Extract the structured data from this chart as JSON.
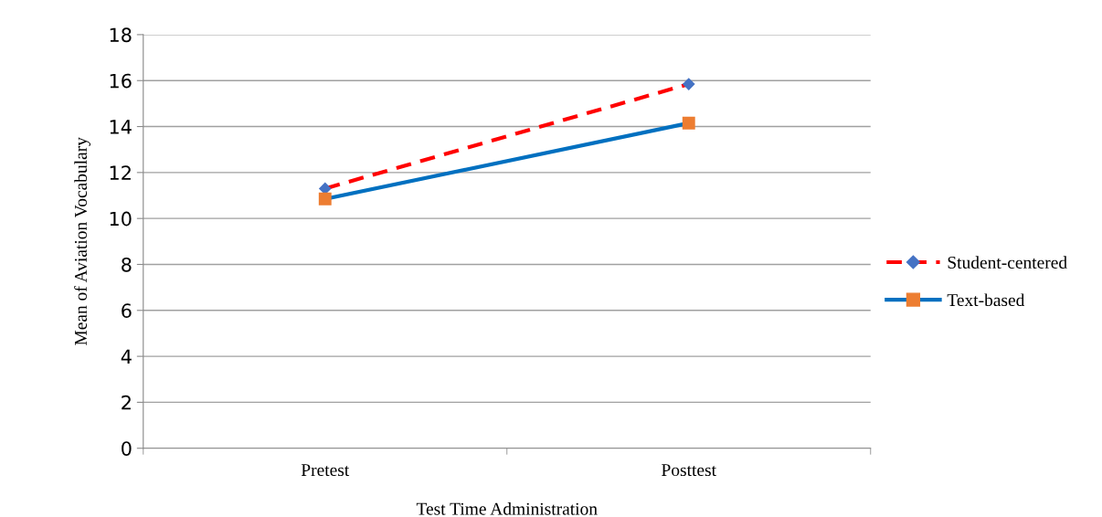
{
  "chart_data": {
    "type": "line",
    "xlabel": "Test Time Administration",
    "ylabel": "Mean of Aviation Vocabulary",
    "categories": [
      "Pretest",
      "Posttest"
    ],
    "series": [
      {
        "name": "Student-centered",
        "color": "#ff0000",
        "colors": [
          "#4472c4",
          "#4472c4"
        ],
        "line_style": "dashed",
        "marker": "diamond",
        "values": [
          11.3,
          15.85
        ]
      },
      {
        "name": "Text-based",
        "color": "#0070c0",
        "colors": [
          "#ed7d31",
          "#ed7d31"
        ],
        "line_style": "solid",
        "marker": "square",
        "values": [
          10.85,
          14.15
        ]
      }
    ],
    "ylim": [
      0,
      18
    ],
    "yticks": [
      0,
      2,
      4,
      6,
      8,
      10,
      12,
      14,
      16,
      18
    ],
    "grid": "y",
    "legend": "right"
  }
}
